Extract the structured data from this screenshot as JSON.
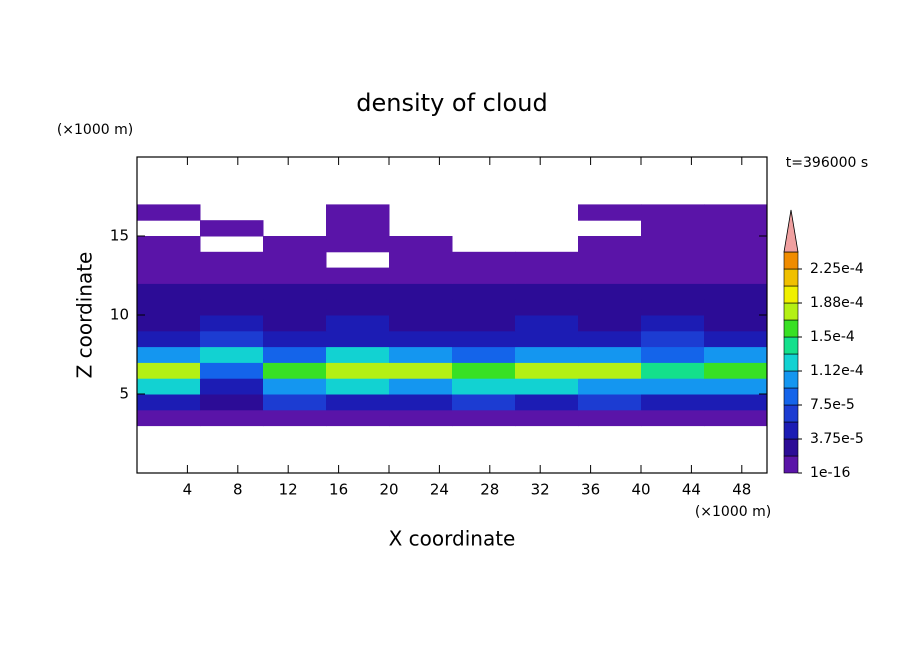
{
  "chart_data": {
    "type": "heatmap",
    "title": "density of cloud",
    "time_label": "t=396000 s",
    "x_label": "X coordinate",
    "y_label": "Z coordinate",
    "x_unit": "(×1000 m)",
    "y_unit": "(×1000 m)",
    "xlim": [
      0,
      50
    ],
    "ylim": [
      0,
      20
    ],
    "xticks": [
      4,
      8,
      12,
      16,
      20,
      24,
      28,
      32,
      36,
      40,
      44,
      48
    ],
    "yticks": [
      5,
      10,
      15
    ],
    "x_edges": [
      0,
      5,
      10,
      15,
      20,
      25,
      30,
      35,
      40,
      45,
      50
    ],
    "y_edges": [
      3,
      4,
      5,
      6,
      7,
      8,
      9,
      10,
      11,
      12,
      13,
      14,
      15,
      16,
      17
    ],
    "values": [
      [
        1e-05,
        1e-05,
        1e-05,
        1e-05,
        1e-05,
        1e-05,
        1e-05,
        1e-05,
        1e-05,
        1e-05
      ],
      [
        5e-05,
        2e-05,
        6e-05,
        5e-05,
        5e-05,
        6e-05,
        5e-05,
        6e-05,
        5e-05,
        5e-05
      ],
      [
        0.00012,
        4e-05,
        0.00011,
        0.00012,
        0.0001,
        0.00013,
        0.00012,
        0.00011,
        0.0001,
        0.00011
      ],
      [
        0.00017,
        8e-05,
        0.00015,
        0.00018,
        0.00017,
        0.00016,
        0.000175,
        0.000185,
        0.00014,
        0.00015
      ],
      [
        0.00011,
        0.00012,
        9e-05,
        0.00012,
        0.00011,
        8e-05,
        0.00011,
        0.0001,
        9e-05,
        0.0001
      ],
      [
        5e-05,
        7e-05,
        5e-05,
        4e-05,
        5e-05,
        4e-05,
        5e-05,
        5e-05,
        6e-05,
        5e-05
      ],
      [
        3e-05,
        4e-05,
        3e-05,
        4e-05,
        3e-05,
        3e-05,
        4e-05,
        3e-05,
        4e-05,
        3e-05
      ],
      [
        2.5e-05,
        2.5e-05,
        2.5e-05,
        2.5e-05,
        2.5e-05,
        2.5e-05,
        2.5e-05,
        2.5e-05,
        2.5e-05,
        2.5e-05
      ],
      [
        2e-05,
        2e-05,
        2e-05,
        2e-05,
        2e-05,
        2e-05,
        2e-05,
        2e-05,
        2e-05,
        2e-05
      ],
      [
        1e-05,
        1e-05,
        1e-05,
        1e-05,
        1e-05,
        1e-05,
        1e-05,
        1e-05,
        1e-05,
        1e-05
      ],
      [
        1e-05,
        1e-05,
        1e-05,
        null,
        1e-05,
        1e-05,
        1e-05,
        1e-05,
        1e-05,
        1e-05
      ],
      [
        1e-05,
        null,
        1e-05,
        1e-05,
        1e-05,
        null,
        null,
        1e-05,
        1e-05,
        1e-05
      ],
      [
        null,
        1e-05,
        null,
        1e-05,
        null,
        null,
        null,
        null,
        1e-05,
        1e-05
      ],
      [
        1e-05,
        null,
        null,
        1e-05,
        null,
        null,
        null,
        1e-05,
        1e-05,
        1e-05
      ]
    ],
    "colorbar": {
      "levels": [
        1e-16,
        1.875e-05,
        3.75e-05,
        5.625e-05,
        7.5e-05,
        9.375e-05,
        0.0001125,
        0.00013125,
        0.00015,
        0.00016875,
        0.0001875,
        0.00020625,
        0.000225,
        0.00024375
      ],
      "colors": [
        "#5a14a8",
        "#2c0c96",
        "#1c1cb4",
        "#1c3cd2",
        "#1464ea",
        "#1496f0",
        "#12d2d2",
        "#14e08c",
        "#38e024",
        "#b4f014",
        "#f0f000",
        "#f0c000",
        "#f08c00"
      ],
      "extend_color": "#f0a0a0",
      "ticks": [
        {
          "value": 1e-16,
          "label": "1e-16"
        },
        {
          "value": 3.75e-05,
          "label": "3.75e-5"
        },
        {
          "value": 7.5e-05,
          "label": "7.5e-5"
        },
        {
          "value": 0.0001125,
          "label": "1.12e-4"
        },
        {
          "value": 0.00015,
          "label": "1.5e-4"
        },
        {
          "value": 0.0001875,
          "label": "1.88e-4"
        },
        {
          "value": 0.000225,
          "label": "2.25e-4"
        }
      ]
    }
  }
}
